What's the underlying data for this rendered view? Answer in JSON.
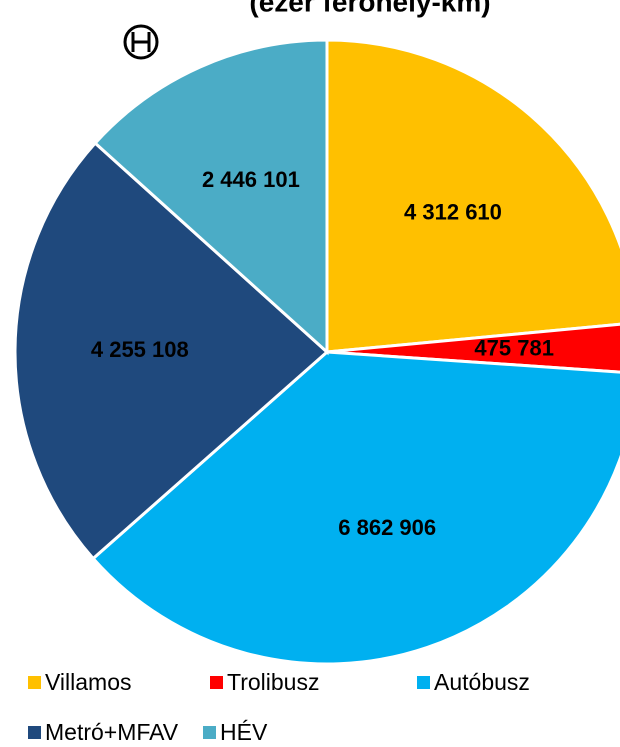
{
  "chart_data": {
    "type": "pie",
    "title": "(ezer férőhely-km)",
    "categories": [
      "Villamos",
      "Trolibusz",
      "Autóbusz",
      "Metró+MFAV",
      "HÉV"
    ],
    "values": [
      4312610,
      475781,
      6862906,
      4255108,
      2446101
    ],
    "value_labels": [
      "4 312 610",
      "475 781",
      "6 862 906",
      "4 255 108",
      "2 446 101"
    ],
    "colors": [
      "#FFC000",
      "#FF0000",
      "#00B0F0",
      "#1F497D",
      "#4BACC6"
    ],
    "legend": "bottom"
  }
}
